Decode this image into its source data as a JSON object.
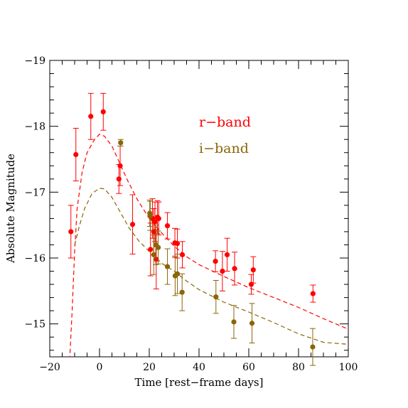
{
  "chart_data": {
    "type": "scatter",
    "xlabel": "Time [rest−frame days]",
    "ylabel": "Absolute Magnitude",
    "xlim": [
      -20,
      100
    ],
    "ylim": [
      -14.5,
      -19
    ],
    "y_inverted": true,
    "x_ticks": [
      {
        "value": -20,
        "label": "−20"
      },
      {
        "value": 0,
        "label": "0"
      },
      {
        "value": 20,
        "label": "20"
      },
      {
        "value": 40,
        "label": "40"
      },
      {
        "value": 60,
        "label": "60"
      },
      {
        "value": 80,
        "label": "80"
      },
      {
        "value": 100,
        "label": "100"
      }
    ],
    "y_ticks": [
      {
        "value": -19,
        "label": "−19"
      },
      {
        "value": -18,
        "label": "−18"
      },
      {
        "value": -17,
        "label": "−17"
      },
      {
        "value": -16,
        "label": "−16"
      },
      {
        "value": -15,
        "label": "−15"
      }
    ],
    "grid": false,
    "legend_position": "upper-right",
    "series": [
      {
        "name": "r−band",
        "color": "#ff0000",
        "points": [
          {
            "x": -11.5,
            "y": -16.4,
            "err": 0.4
          },
          {
            "x": -9.5,
            "y": -17.57,
            "err": 0.4
          },
          {
            "x": -3.5,
            "y": -18.15,
            "err": 0.35
          },
          {
            "x": 1.5,
            "y": -18.22,
            "err": 0.28
          },
          {
            "x": 7.8,
            "y": -17.2,
            "err": 0.22
          },
          {
            "x": 8.3,
            "y": -17.4,
            "err": 0.3
          },
          {
            "x": 13.3,
            "y": -16.51,
            "err": 0.45
          },
          {
            "x": 20.5,
            "y": -16.13,
            "err": 0.4
          },
          {
            "x": 21.3,
            "y": -16.6,
            "err": 0.3
          },
          {
            "x": 21.8,
            "y": -16.4,
            "err": 0.35
          },
          {
            "x": 22.3,
            "y": -16.55,
            "err": 0.3
          },
          {
            "x": 22.8,
            "y": -15.98,
            "err": 0.45
          },
          {
            "x": 23.3,
            "y": -16.62,
            "err": 0.25
          },
          {
            "x": 23.8,
            "y": -16.6,
            "err": 0.25
          },
          {
            "x": 27.3,
            "y": -16.49,
            "err": 0.2
          },
          {
            "x": 30.3,
            "y": -16.23,
            "err": 0.22
          },
          {
            "x": 31.3,
            "y": -16.22,
            "err": 0.22
          },
          {
            "x": 33.3,
            "y": -16.05,
            "err": 0.2
          },
          {
            "x": 46.6,
            "y": -15.95,
            "err": 0.16
          },
          {
            "x": 49.4,
            "y": -15.8,
            "err": 0.3
          },
          {
            "x": 51.3,
            "y": -16.05,
            "err": 0.25
          },
          {
            "x": 54.3,
            "y": -15.84,
            "err": 0.25
          },
          {
            "x": 61.0,
            "y": -15.6,
            "err": 0.15
          },
          {
            "x": 61.8,
            "y": -15.82,
            "err": 0.2
          },
          {
            "x": 85.8,
            "y": -15.46,
            "err": 0.13
          }
        ],
        "model": [
          {
            "x": -12.0,
            "y": -14.45
          },
          {
            "x": -11.0,
            "y": -15.2
          },
          {
            "x": -10.0,
            "y": -16.1
          },
          {
            "x": -9.0,
            "y": -16.75
          },
          {
            "x": -7.0,
            "y": -17.3
          },
          {
            "x": -5.0,
            "y": -17.6
          },
          {
            "x": -2.0,
            "y": -17.8
          },
          {
            "x": 0.0,
            "y": -17.88
          },
          {
            "x": 2.0,
            "y": -17.85
          },
          {
            "x": 5.0,
            "y": -17.7
          },
          {
            "x": 8.0,
            "y": -17.45
          },
          {
            "x": 11.0,
            "y": -17.2
          },
          {
            "x": 15.0,
            "y": -16.9
          },
          {
            "x": 20.0,
            "y": -16.6
          },
          {
            "x": 25.0,
            "y": -16.38
          },
          {
            "x": 30.0,
            "y": -16.18
          },
          {
            "x": 35.0,
            "y": -16.02
          },
          {
            "x": 40.0,
            "y": -15.9
          },
          {
            "x": 50.0,
            "y": -15.72
          },
          {
            "x": 60.0,
            "y": -15.55
          },
          {
            "x": 70.0,
            "y": -15.4
          },
          {
            "x": 80.0,
            "y": -15.25
          },
          {
            "x": 90.0,
            "y": -15.08
          },
          {
            "x": 100.0,
            "y": -14.92
          }
        ]
      },
      {
        "name": "i−band",
        "color": "#8b6508",
        "points": [
          {
            "x": 8.5,
            "y": -17.75,
            "err": 0.05
          },
          {
            "x": 20.2,
            "y": -16.68,
            "err": 0.2
          },
          {
            "x": 20.4,
            "y": -16.64,
            "err": 0.22
          },
          {
            "x": 21.8,
            "y": -16.05,
            "err": 0.3
          },
          {
            "x": 22.6,
            "y": -16.2,
            "err": 0.3
          },
          {
            "x": 23.6,
            "y": -16.16,
            "err": 0.25
          },
          {
            "x": 27.3,
            "y": -15.87,
            "err": 0.27
          },
          {
            "x": 30.4,
            "y": -15.73,
            "err": 0.3
          },
          {
            "x": 31.3,
            "y": -15.76,
            "err": 0.3
          },
          {
            "x": 33.2,
            "y": -15.48,
            "err": 0.28
          },
          {
            "x": 46.8,
            "y": -15.41,
            "err": 0.25
          },
          {
            "x": 54.0,
            "y": -15.03,
            "err": 0.25
          },
          {
            "x": 61.3,
            "y": -15.01,
            "err": 0.3
          },
          {
            "x": 85.7,
            "y": -14.65,
            "err": 0.28
          }
        ],
        "model": [
          {
            "x": -10.0,
            "y": -16.2
          },
          {
            "x": -8.0,
            "y": -16.5
          },
          {
            "x": -6.0,
            "y": -16.75
          },
          {
            "x": -3.0,
            "y": -16.98
          },
          {
            "x": 0.0,
            "y": -17.06
          },
          {
            "x": 2.0,
            "y": -17.05
          },
          {
            "x": 5.0,
            "y": -16.92
          },
          {
            "x": 8.0,
            "y": -16.72
          },
          {
            "x": 12.0,
            "y": -16.45
          },
          {
            "x": 16.0,
            "y": -16.25
          },
          {
            "x": 20.0,
            "y": -16.1
          },
          {
            "x": 25.0,
            "y": -15.92
          },
          {
            "x": 30.0,
            "y": -15.8
          },
          {
            "x": 35.0,
            "y": -15.65
          },
          {
            "x": 40.0,
            "y": -15.52
          },
          {
            "x": 50.0,
            "y": -15.33
          },
          {
            "x": 60.0,
            "y": -15.18
          },
          {
            "x": 70.0,
            "y": -15.02
          },
          {
            "x": 80.0,
            "y": -14.85
          },
          {
            "x": 90.0,
            "y": -14.72
          },
          {
            "x": 100.0,
            "y": -14.69
          }
        ]
      }
    ]
  }
}
